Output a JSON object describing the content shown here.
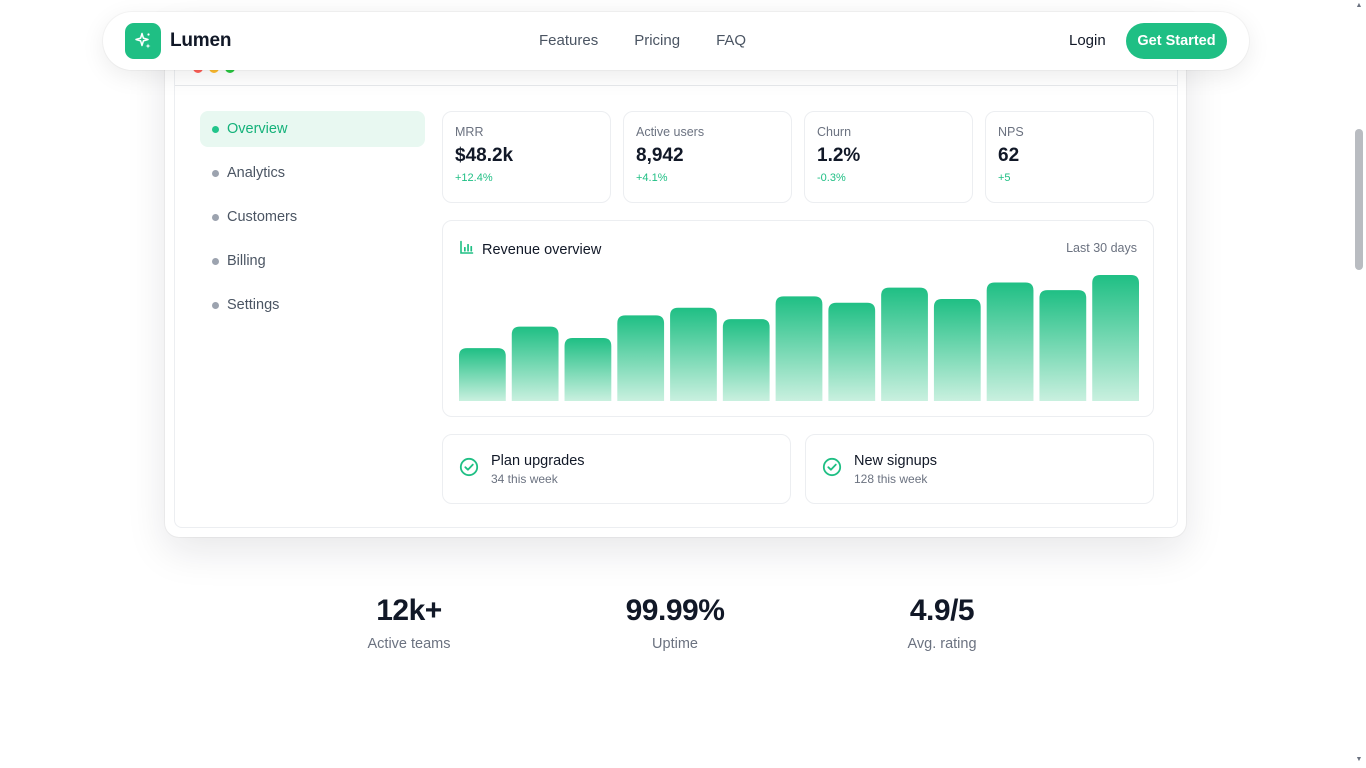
{
  "brand": {
    "name": "Lumen",
    "logo_icon": "sparkle-icon",
    "accent": "#1fbf84"
  },
  "nav": {
    "links": [
      "Features",
      "Pricing",
      "FAQ"
    ],
    "login": "Login",
    "cta": "Get Started"
  },
  "window": {
    "dots": [
      "#ff5f57",
      "#febc2e",
      "#28c840"
    ]
  },
  "sidebar": {
    "items": [
      {
        "label": "Overview",
        "active": true
      },
      {
        "label": "Analytics",
        "active": false
      },
      {
        "label": "Customers",
        "active": false
      },
      {
        "label": "Billing",
        "active": false
      },
      {
        "label": "Settings",
        "active": false
      }
    ]
  },
  "kpis": [
    {
      "label": "MRR",
      "value": "$48.2k",
      "delta": "+12.4%"
    },
    {
      "label": "Active users",
      "value": "8,942",
      "delta": "+4.1%"
    },
    {
      "label": "Churn",
      "value": "1.2%",
      "delta": "-0.3%"
    },
    {
      "label": "NPS",
      "value": "62",
      "delta": "+5"
    }
  ],
  "revenue": {
    "title": "Revenue overview",
    "range": "Last 30 days",
    "icon": "bar-chart-icon"
  },
  "chart_data": {
    "type": "bar",
    "title": "Revenue overview",
    "values": [
      42,
      59,
      50,
      68,
      74,
      65,
      83,
      78,
      90,
      81,
      94,
      88,
      100
    ],
    "ylim": [
      0,
      100
    ],
    "grid": false,
    "legend": "none",
    "colors": {
      "top": "#1fbf84",
      "bottom": "#c9f0df"
    }
  },
  "mini_cards": [
    {
      "title": "Plan upgrades",
      "sub": "34 this week",
      "icon": "check-circle-icon"
    },
    {
      "title": "New signups",
      "sub": "128 this week",
      "icon": "check-circle-icon"
    }
  ],
  "stats": [
    {
      "value": "12k+",
      "label": "Active teams"
    },
    {
      "value": "99.99%",
      "label": "Uptime"
    },
    {
      "value": "4.9/5",
      "label": "Avg. rating"
    }
  ]
}
